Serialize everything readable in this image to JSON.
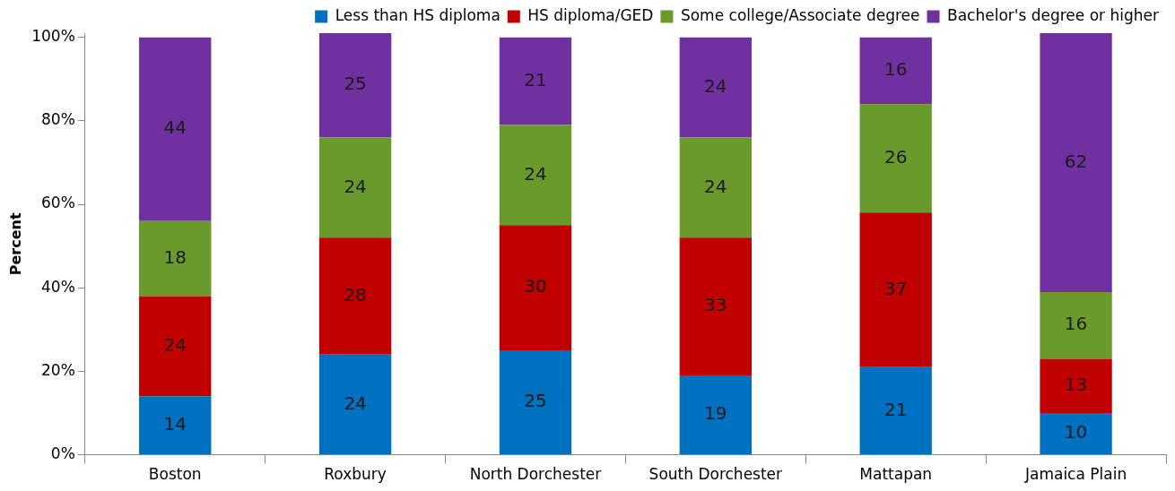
{
  "chart_data": {
    "type": "bar",
    "stacked": true,
    "ylabel": "Percent",
    "categories": [
      "Boston",
      "Roxbury",
      "North Dorchester",
      "South Dorchester",
      "Mattapan",
      "Jamaica Plain"
    ],
    "series": [
      {
        "name": "Less than HS diploma",
        "color": "#0070c0",
        "values": [
          14,
          24,
          25,
          19,
          21,
          10
        ]
      },
      {
        "name": "HS diploma/GED",
        "color": "#c00000",
        "values": [
          24,
          28,
          30,
          33,
          37,
          13
        ]
      },
      {
        "name": "Some college/Associate degree",
        "color": "#6b9a2c",
        "values": [
          18,
          24,
          24,
          24,
          26,
          16
        ]
      },
      {
        "name": "Bachelor's degree or higher",
        "color": "#7030a0",
        "values": [
          44,
          25,
          21,
          24,
          16,
          62
        ]
      }
    ],
    "ylim": [
      0,
      101
    ],
    "yticks": [
      {
        "value": 0,
        "label": "0%"
      },
      {
        "value": 20,
        "label": "20%"
      },
      {
        "value": 40,
        "label": "40%"
      },
      {
        "value": 60,
        "label": "60%"
      },
      {
        "value": 80,
        "label": "80%"
      },
      {
        "value": 100,
        "label": "100%"
      }
    ],
    "grid": false,
    "legend": "top",
    "data_labels": true
  }
}
